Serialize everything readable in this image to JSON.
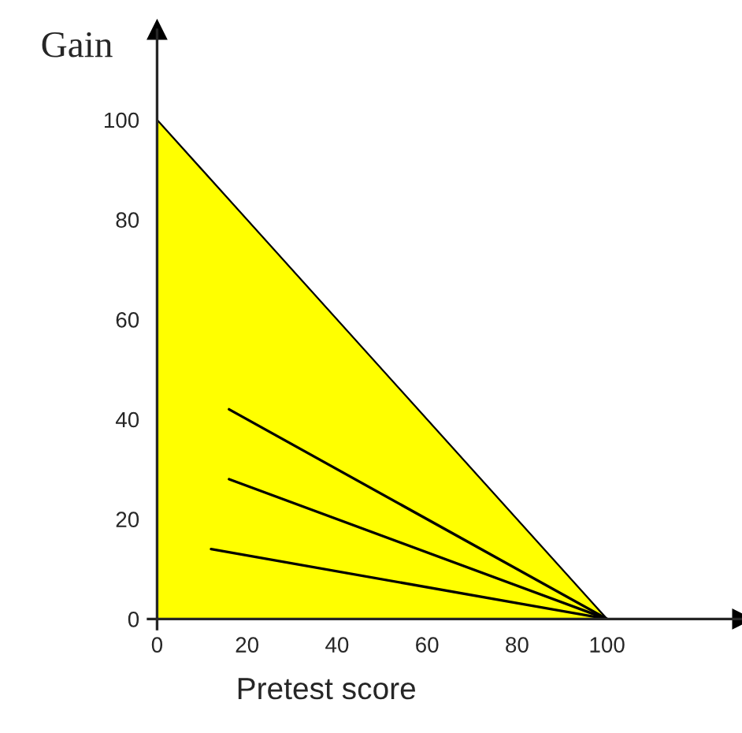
{
  "chart_data": {
    "type": "line",
    "xlabel": "Pretest score",
    "ylabel": "Gain",
    "xlim": [
      -2,
      130
    ],
    "ylim": [
      -2,
      118
    ],
    "xticks": [
      0,
      20,
      40,
      60,
      80,
      100
    ],
    "yticks": [
      0,
      20,
      40,
      60,
      80,
      100
    ],
    "grid": false,
    "legend": false,
    "series": [
      {
        "type": "area",
        "color": "#ffff00",
        "x": [
          0,
          100
        ],
        "values": [
          100,
          0
        ]
      },
      {
        "color": "#000000",
        "x": [
          16,
          100
        ],
        "values": [
          42,
          0
        ]
      },
      {
        "color": "#000000",
        "x": [
          16,
          100
        ],
        "values": [
          28,
          0
        ]
      },
      {
        "color": "#000000",
        "x": [
          12,
          100
        ],
        "values": [
          14,
          0
        ]
      }
    ]
  }
}
